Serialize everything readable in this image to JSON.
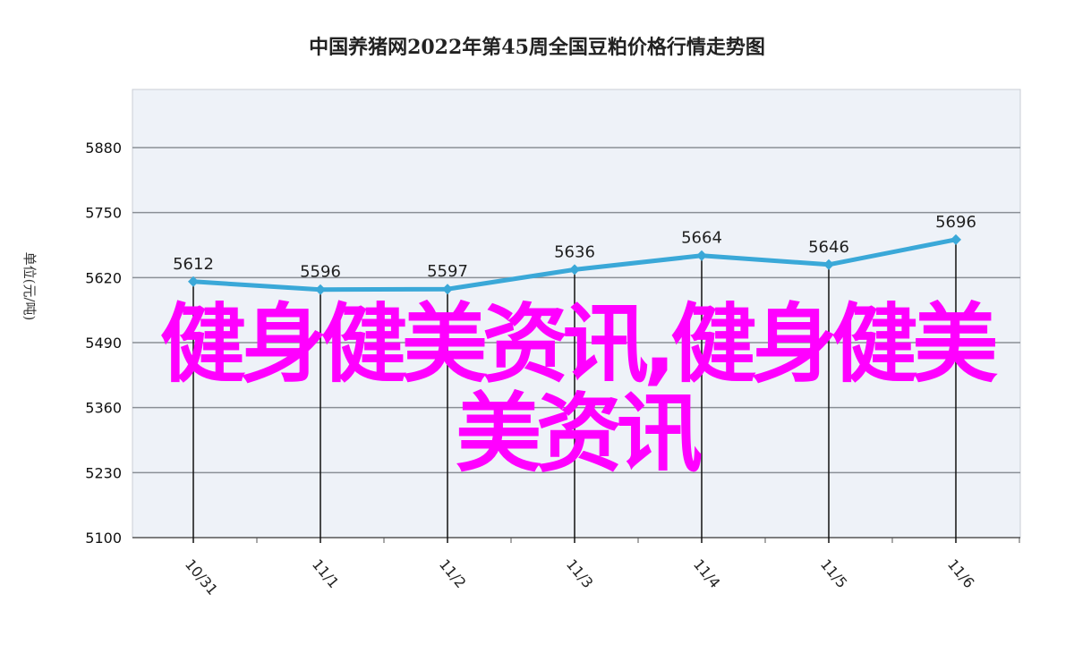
{
  "chart_data": {
    "type": "line",
    "title": "中国养猪网2022年第45周全国豆粕价格行情走势图",
    "xlabel": "",
    "ylabel": "单位(元/吨)",
    "categories": [
      "10/31",
      "11/1",
      "11/2",
      "11/3",
      "11/4",
      "11/5",
      "11/6"
    ],
    "series": [
      {
        "values": [
          5612,
          5596,
          5597,
          5636,
          5664,
          5646,
          5696
        ],
        "labels": [
          "5612",
          "5596",
          "5597",
          "5636",
          "5664",
          "5646",
          "5696"
        ]
      }
    ],
    "ylim": [
      5100,
      5880
    ],
    "yticks": [
      5100,
      5230,
      5360,
      5490,
      5620,
      5750,
      5880
    ],
    "grid": true,
    "legend": "none",
    "colors": {
      "line": "#3aa8d8",
      "plot_bg": "#eef2f8",
      "grid": "#8a8f96"
    }
  },
  "overlay": {
    "line1": "健身健美资讯,健身健美",
    "line2": "美资讯",
    "color": "#ff00ff"
  }
}
